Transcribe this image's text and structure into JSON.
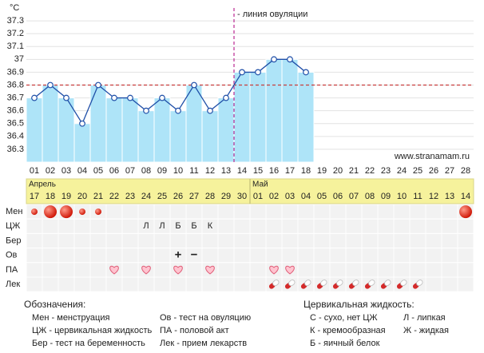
{
  "chart_data": {
    "type": "line",
    "y_unit": "°C",
    "ylim": [
      36.2,
      37.4
    ],
    "yticks": [
      36.3,
      36.4,
      36.5,
      36.6,
      36.7,
      36.8,
      36.9,
      37,
      37.1,
      37.2,
      37.3
    ],
    "grid": true,
    "categories": [
      "01",
      "02",
      "03",
      "04",
      "05",
      "06",
      "07",
      "08",
      "09",
      "10",
      "11",
      "12",
      "13",
      "14",
      "15",
      "16",
      "17",
      "18",
      "19",
      "20",
      "21",
      "22",
      "23",
      "24",
      "25",
      "26",
      "27",
      "28"
    ],
    "values": [
      36.7,
      36.8,
      36.7,
      36.5,
      36.8,
      36.7,
      36.7,
      36.6,
      36.7,
      36.6,
      36.8,
      36.6,
      36.7,
      36.9,
      36.9,
      37,
      37,
      36.9,
      null,
      null,
      null,
      null,
      null,
      null,
      null,
      null,
      null,
      null
    ],
    "color": "#1f4fa8",
    "bar_color": "#aee4f8",
    "cover_line": 36.8,
    "cover_color": "#c83c3c",
    "ovulation_day": "14",
    "ovulation_label": "- линия овуляции",
    "ovulation_color": "#c0399a",
    "watermark": "www.stranamam.ru"
  },
  "calendar": [
    {
      "name": "Апрель",
      "dates": [
        "17",
        "18",
        "19",
        "20",
        "21",
        "22",
        "23",
        "24",
        "25",
        "26",
        "27",
        "28",
        "29",
        "30"
      ]
    },
    {
      "name": "Май",
      "dates": [
        "01",
        "02",
        "03",
        "04",
        "05",
        "06",
        "07",
        "08",
        "09",
        "10",
        "11",
        "12",
        "13",
        "14"
      ]
    }
  ],
  "rows": [
    {
      "label": "Мен",
      "kind": "flow",
      "values": [
        "small",
        "large",
        "large",
        "small",
        "small",
        null,
        null,
        null,
        null,
        null,
        null,
        null,
        null,
        null,
        null,
        null,
        null,
        null,
        null,
        null,
        null,
        null,
        null,
        null,
        null,
        null,
        null,
        "large"
      ]
    },
    {
      "label": "ЦЖ",
      "kind": "text",
      "values": [
        null,
        null,
        null,
        null,
        null,
        null,
        null,
        "Л",
        "Л",
        "Б",
        "Б",
        "К",
        null,
        null,
        null,
        null,
        null,
        null,
        null,
        null,
        null,
        null,
        null,
        null,
        null,
        null,
        null,
        null
      ]
    },
    {
      "label": "Бер",
      "kind": "text",
      "values": [
        null,
        null,
        null,
        null,
        null,
        null,
        null,
        null,
        null,
        null,
        null,
        null,
        null,
        null,
        null,
        null,
        null,
        null,
        null,
        null,
        null,
        null,
        null,
        null,
        null,
        null,
        null,
        null
      ]
    },
    {
      "label": "Ов",
      "kind": "sign",
      "values": [
        null,
        null,
        null,
        null,
        null,
        null,
        null,
        null,
        null,
        {
          "text": "+",
          "color": "#3a9a2a"
        },
        {
          "text": "−",
          "color": "#d82020"
        },
        null,
        null,
        null,
        null,
        null,
        null,
        null,
        null,
        null,
        null,
        null,
        null,
        null,
        null,
        null,
        null,
        null
      ]
    },
    {
      "label": "ПА",
      "kind": "heart",
      "values": [
        null,
        null,
        null,
        null,
        null,
        true,
        null,
        true,
        null,
        true,
        null,
        true,
        null,
        null,
        null,
        true,
        true,
        null,
        null,
        null,
        null,
        null,
        null,
        null,
        null,
        null,
        null,
        null
      ]
    },
    {
      "label": "Лек",
      "kind": "pill",
      "values": [
        null,
        null,
        null,
        null,
        null,
        null,
        null,
        null,
        null,
        null,
        null,
        null,
        null,
        null,
        null,
        true,
        true,
        true,
        true,
        true,
        true,
        true,
        true,
        true,
        true,
        null,
        null,
        null
      ]
    }
  ],
  "legend": {
    "title": "Обозначения:",
    "items": [
      "Мен - менструация",
      "ЦЖ - цервикальная жидкость",
      "Бер - тест на беременность",
      "Ов - тест на овуляцию",
      "ПА - половой акт",
      "Лек - прием лекарств"
    ]
  },
  "cm_legend": {
    "title": "Цервикальная жидкость:",
    "items": [
      "С - сухо, нет ЦЖ",
      "К - кремообразная",
      "Б - яичный белок",
      "Л - липкая",
      "Ж - жидкая"
    ]
  }
}
